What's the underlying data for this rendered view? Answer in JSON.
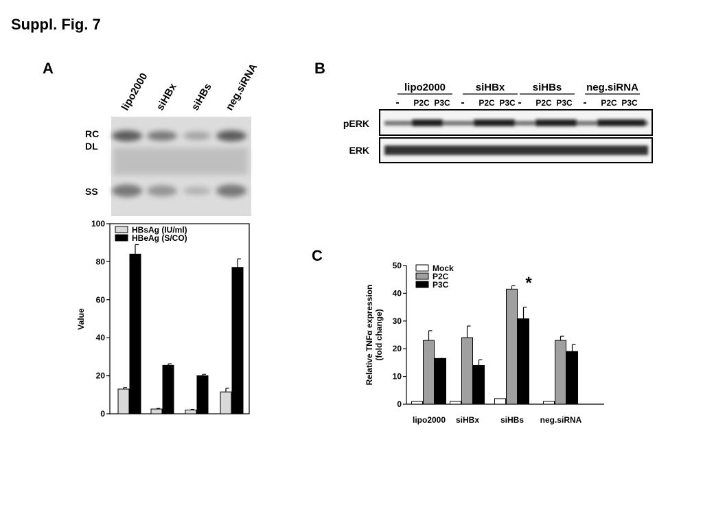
{
  "title": "Suppl. Fig. 7",
  "panel_a": {
    "label": "A",
    "lanes": [
      "lipo2000",
      "siHBx",
      "siHBs",
      "neg.siRNA"
    ],
    "bands": [
      "RC",
      "DL",
      "SS"
    ]
  },
  "panel_b": {
    "label": "B",
    "groups": [
      "lipo2000",
      "siHBx",
      "siHBs",
      "neg.siRNA"
    ],
    "lanes": [
      "-",
      "P2C",
      "P3C"
    ],
    "rows": [
      "pERK",
      "ERK"
    ]
  },
  "panel_c": {
    "label": "C"
  },
  "chart_data": [
    {
      "type": "bar",
      "y_label": "Value",
      "categories": [
        null,
        null,
        null,
        null
      ],
      "series": [
        {
          "name": "HBsAg (IU/ml)",
          "color": "#d9d9d9",
          "values": [
            13,
            2.5,
            2,
            11.5
          ],
          "errors": [
            0.8,
            0.3,
            0.3,
            2
          ]
        },
        {
          "name": "HBeAg (S/CO)",
          "color": "#000000",
          "values": [
            84,
            25.5,
            20,
            77
          ],
          "errors": [
            5,
            0.8,
            0.8,
            4.5
          ]
        }
      ],
      "ylim": [
        0,
        100
      ],
      "yticks": [
        0,
        20,
        40,
        60,
        80,
        100
      ],
      "legend": "top-left"
    },
    {
      "type": "bar",
      "y_label": [
        "Relative TNFα expression",
        "(fold change)"
      ],
      "categories": [
        "lipo2000",
        "siHBx",
        "siHBs",
        "neg.siRNA"
      ],
      "series": [
        {
          "name": "Mock",
          "color": "#ffffff",
          "values": [
            1,
            1,
            2,
            1
          ]
        },
        {
          "name": "P2C",
          "color": "#a0a0a0",
          "values": [
            23,
            24,
            41.5,
            23
          ],
          "errors": [
            3.5,
            4.2,
            1.2,
            1.5
          ]
        },
        {
          "name": "P3C",
          "color": "#000000",
          "values": [
            16.5,
            14,
            30.8,
            19
          ],
          "errors": [
            0,
            2,
            4.2,
            2.5
          ]
        }
      ],
      "ylim": [
        0,
        50
      ],
      "yticks": [
        0,
        10,
        20,
        30,
        40,
        50
      ],
      "legend": "top-left",
      "annotations": [
        "*"
      ]
    }
  ]
}
